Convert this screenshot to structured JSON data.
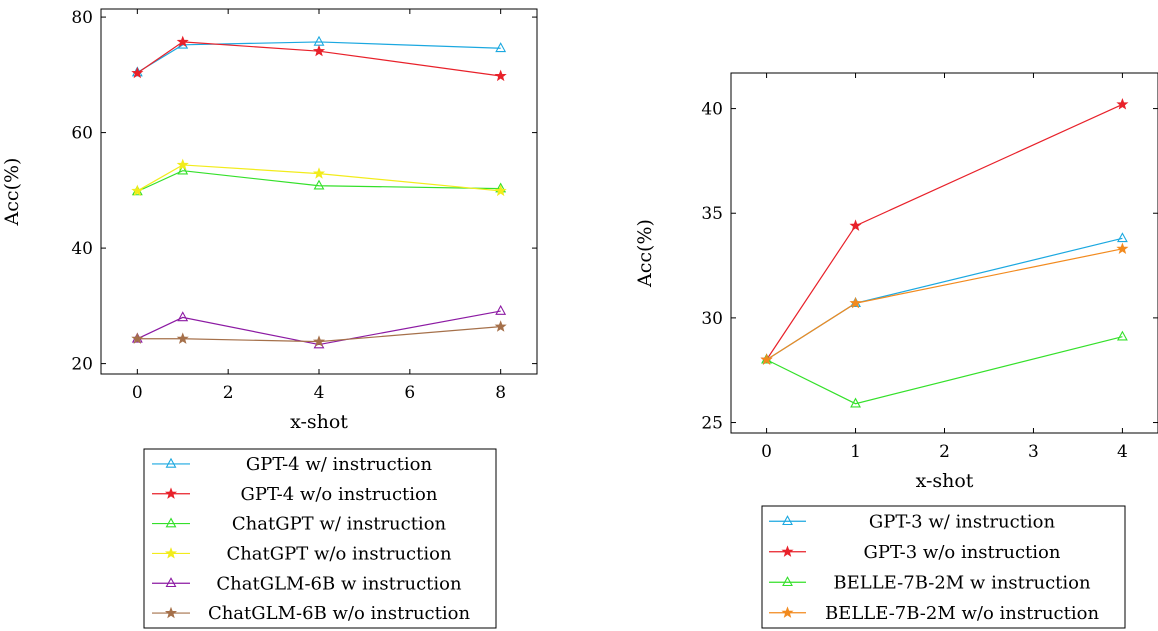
{
  "chart_data": [
    {
      "type": "line",
      "title": "",
      "xlabel": "x-shot",
      "ylabel": "Acc(%)",
      "x": [
        0,
        1,
        4,
        8
      ],
      "xticks": [
        0,
        2,
        4,
        6,
        8
      ],
      "yticks": [
        20,
        40,
        60,
        80
      ],
      "xlim": [
        -0.8,
        8.8
      ],
      "ylim": [
        18.2,
        81.4
      ],
      "grid": false,
      "legend_position": "below",
      "series": [
        {
          "name": "GPT-4 w/ instruction",
          "color": "#1ba8e0",
          "marker": "triangle",
          "values": [
            70.4,
            75.2,
            75.7,
            74.6
          ]
        },
        {
          "name": "GPT-4 w/o instruction",
          "color": "#e8212a",
          "marker": "star",
          "values": [
            70.3,
            75.7,
            74.1,
            69.8
          ]
        },
        {
          "name": "ChatGPT w/ instruction",
          "color": "#34e02a",
          "marker": "triangle",
          "values": [
            49.8,
            53.4,
            50.8,
            50.3
          ]
        },
        {
          "name": "ChatGPT w/o instruction",
          "color": "#f2ec1b",
          "marker": "star",
          "values": [
            49.9,
            54.4,
            52.9,
            49.9
          ]
        },
        {
          "name": "ChatGLM-6B w instruction",
          "color": "#8c1aa3",
          "marker": "triangle",
          "values": [
            24.3,
            28.0,
            23.3,
            29.1
          ]
        },
        {
          "name": "ChatGLM-6B w/o instruction",
          "color": "#a5704a",
          "marker": "star",
          "values": [
            24.3,
            24.3,
            23.8,
            26.4
          ]
        }
      ]
    },
    {
      "type": "line",
      "title": "",
      "xlabel": "x-shot",
      "ylabel": "Acc(%)",
      "x": [
        0,
        1,
        4
      ],
      "xticks": [
        0,
        1,
        2,
        3,
        4
      ],
      "yticks": [
        25,
        30,
        35,
        40
      ],
      "xlim": [
        -0.4,
        4.4
      ],
      "ylim": [
        24.5,
        41.7
      ],
      "grid": false,
      "legend_position": "below",
      "series": [
        {
          "name": "GPT-3 w/ instruction",
          "color": "#1ba8e0",
          "marker": "triangle",
          "values": [
            28.0,
            30.7,
            33.8
          ]
        },
        {
          "name": "GPT-3 w/o instruction",
          "color": "#e8212a",
          "marker": "star",
          "values": [
            28.0,
            34.4,
            40.2
          ]
        },
        {
          "name": "BELLE-7B-2M w instruction",
          "color": "#34e02a",
          "marker": "triangle",
          "values": [
            28.0,
            25.9,
            29.1
          ]
        },
        {
          "name": "BELLE-7B-2M w/o instruction",
          "color": "#f28a1e",
          "marker": "star",
          "values": [
            28.0,
            30.7,
            33.3
          ]
        }
      ]
    }
  ]
}
